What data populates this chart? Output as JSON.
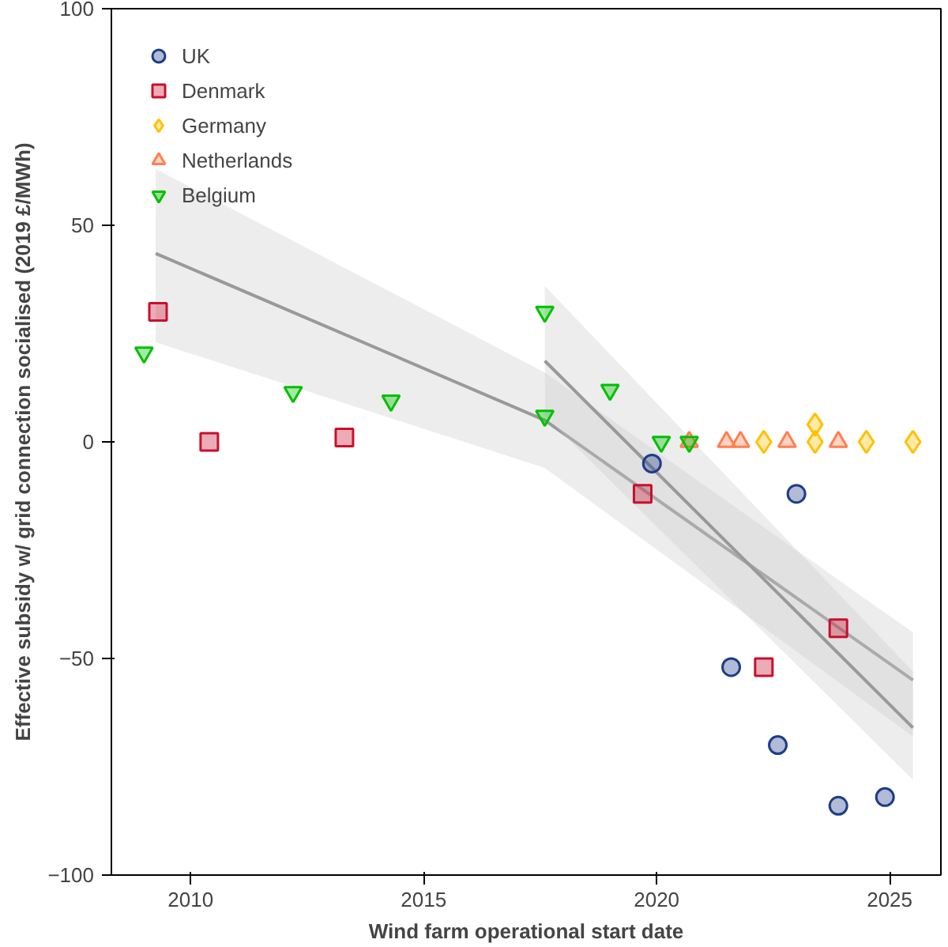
{
  "chart_data": {
    "type": "scatter",
    "xlabel": "Wind farm operational start date",
    "ylabel": "Effective subsidy w/ grid connection socialised (2019 £/MWh)",
    "xlim": [
      2008.3,
      2026.1
    ],
    "ylim": [
      -100,
      100
    ],
    "xticks": [
      2010,
      2015,
      2020,
      2025
    ],
    "yticks": [
      -100,
      -50,
      0,
      50,
      100
    ],
    "grid": false,
    "legend": "top left",
    "series": [
      {
        "name": "UK",
        "color": "#1f3c88",
        "marker": "circle",
        "x": [
          2019.9,
          2023.0,
          2021.6,
          2022.6,
          2023.9,
          2024.9
        ],
        "values": [
          -5,
          -12,
          -52,
          -70,
          -84,
          -82
        ]
      },
      {
        "name": "Denmark",
        "color": "#c8102e",
        "marker": "square",
        "x": [
          2009.3,
          2010.4,
          2013.3,
          2019.7,
          2022.3,
          2023.9
        ],
        "values": [
          30,
          0,
          1,
          -12,
          -52,
          -43
        ]
      },
      {
        "name": "Germany",
        "color": "#ffc000",
        "marker": "diamond",
        "x": [
          2022.3,
          2023.4,
          2023.4,
          2024.5,
          2025.5
        ],
        "values": [
          0,
          4,
          0,
          0,
          0
        ]
      },
      {
        "name": "Netherlands",
        "color": "#ff7f50",
        "marker": "triangle",
        "x": [
          2020.7,
          2021.5,
          2021.8,
          2022.8,
          2023.9
        ],
        "values": [
          0,
          0,
          0,
          0,
          0
        ]
      },
      {
        "name": "Belgium",
        "color": "#00c000",
        "marker": "triangle",
        "x": [
          2009.0,
          2012.2,
          2014.3,
          2017.6,
          2017.6,
          2019.0,
          2020.1,
          2020.7
        ],
        "values": [
          20.6,
          11.5,
          9.5,
          30,
          6,
          12,
          0,
          0
        ]
      },
      {
        "type": "line",
        "color": "#999999",
        "x": [
          2009.25,
          2017.6,
          2025.5
        ],
        "values": [
          43.5,
          5,
          -55
        ],
        "lower": [
          23,
          -6,
          -68
        ],
        "upper": [
          63,
          16,
          -44
        ]
      },
      {
        "type": "line",
        "color": "#999999",
        "x": [
          2017.6,
          2025.5
        ],
        "values": [
          18.7,
          -66
        ],
        "lower": [
          6,
          -78
        ],
        "upper": [
          36,
          -53
        ]
      }
    ]
  }
}
